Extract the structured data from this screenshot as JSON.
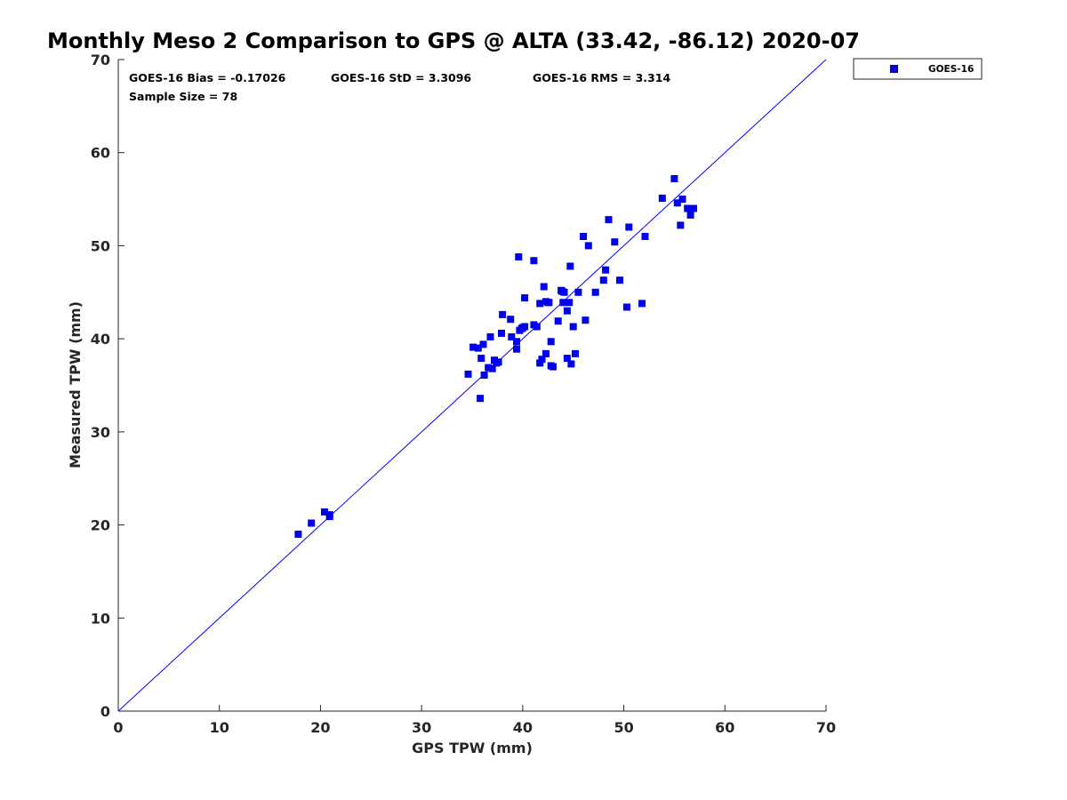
{
  "chart_data": {
    "type": "scatter",
    "title": "Monthly Meso 2 Comparison to GPS @ ALTA (33.42, -86.12) 2020-07",
    "xlabel": "GPS TPW (mm)",
    "ylabel": "Measured TPW (mm)",
    "xlim": [
      0,
      70
    ],
    "ylim": [
      0,
      70
    ],
    "xticks": [
      "0",
      "10",
      "20",
      "30",
      "40",
      "50",
      "60",
      "70"
    ],
    "yticks": [
      "0",
      "10",
      "20",
      "30",
      "40",
      "50",
      "60",
      "70"
    ],
    "grid": false,
    "legend_position": "outside-top-right",
    "reference_line": {
      "type": "one-to-one",
      "color": "#0000ff"
    },
    "annotations": {
      "bias": "GOES-16 Bias = -0.17026",
      "std": "GOES-16 StD = 3.3096",
      "rms": "GOES-16 RMS = 3.314",
      "sample_size": "Sample Size = 78"
    },
    "series": [
      {
        "name": "GOES-16",
        "color": "#0000ee",
        "marker": "square",
        "points": [
          [
            17.8,
            19.0
          ],
          [
            19.1,
            20.2
          ],
          [
            20.4,
            21.4
          ],
          [
            20.9,
            20.9
          ],
          [
            20.9,
            21.1
          ],
          [
            34.6,
            36.2
          ],
          [
            35.1,
            39.1
          ],
          [
            35.6,
            39.0
          ],
          [
            35.8,
            33.6
          ],
          [
            35.9,
            37.9
          ],
          [
            36.1,
            39.4
          ],
          [
            36.2,
            36.1
          ],
          [
            36.6,
            36.9
          ],
          [
            36.8,
            40.2
          ],
          [
            37.0,
            36.8
          ],
          [
            37.2,
            37.7
          ],
          [
            37.4,
            37.4
          ],
          [
            37.6,
            37.5
          ],
          [
            38.0,
            42.6
          ],
          [
            37.9,
            40.6
          ],
          [
            38.8,
            42.1
          ],
          [
            38.9,
            40.2
          ],
          [
            39.4,
            39.7
          ],
          [
            39.4,
            38.9
          ],
          [
            39.6,
            48.8
          ],
          [
            39.7,
            40.9
          ],
          [
            39.9,
            41.1
          ],
          [
            40.2,
            41.3
          ],
          [
            40.2,
            44.4
          ],
          [
            41.1,
            48.4
          ],
          [
            41.1,
            41.5
          ],
          [
            41.4,
            41.3
          ],
          [
            41.7,
            43.8
          ],
          [
            41.7,
            37.4
          ],
          [
            41.9,
            37.8
          ],
          [
            42.1,
            45.6
          ],
          [
            42.3,
            38.4
          ],
          [
            42.3,
            44.0
          ],
          [
            42.5,
            43.9
          ],
          [
            42.8,
            39.7
          ],
          [
            42.8,
            37.1
          ],
          [
            43.0,
            37.0
          ],
          [
            43.5,
            41.9
          ],
          [
            43.8,
            45.2
          ],
          [
            44.0,
            43.9
          ],
          [
            44.1,
            45.0
          ],
          [
            44.4,
            43.0
          ],
          [
            44.4,
            37.9
          ],
          [
            44.6,
            43.9
          ],
          [
            44.7,
            47.8
          ],
          [
            44.8,
            37.3
          ],
          [
            45.0,
            41.3
          ],
          [
            45.2,
            38.4
          ],
          [
            45.5,
            45.0
          ],
          [
            46.0,
            51.0
          ],
          [
            46.2,
            42.0
          ],
          [
            46.5,
            50.0
          ],
          [
            47.2,
            45.0
          ],
          [
            48.0,
            46.3
          ],
          [
            48.2,
            47.4
          ],
          [
            48.5,
            52.8
          ],
          [
            49.1,
            50.4
          ],
          [
            49.6,
            46.3
          ],
          [
            50.3,
            43.4
          ],
          [
            50.5,
            52.0
          ],
          [
            51.8,
            43.8
          ],
          [
            52.1,
            51.0
          ],
          [
            53.8,
            55.1
          ],
          [
            55.0,
            57.2
          ],
          [
            55.3,
            54.6
          ],
          [
            55.6,
            52.2
          ],
          [
            55.8,
            55.0
          ],
          [
            56.3,
            54.0
          ],
          [
            56.6,
            53.3
          ],
          [
            56.9,
            54.0
          ],
          [
            42.6,
            43.9
          ],
          [
            43.9,
            45.1
          ],
          [
            40.0,
            41.2
          ]
        ]
      }
    ]
  }
}
